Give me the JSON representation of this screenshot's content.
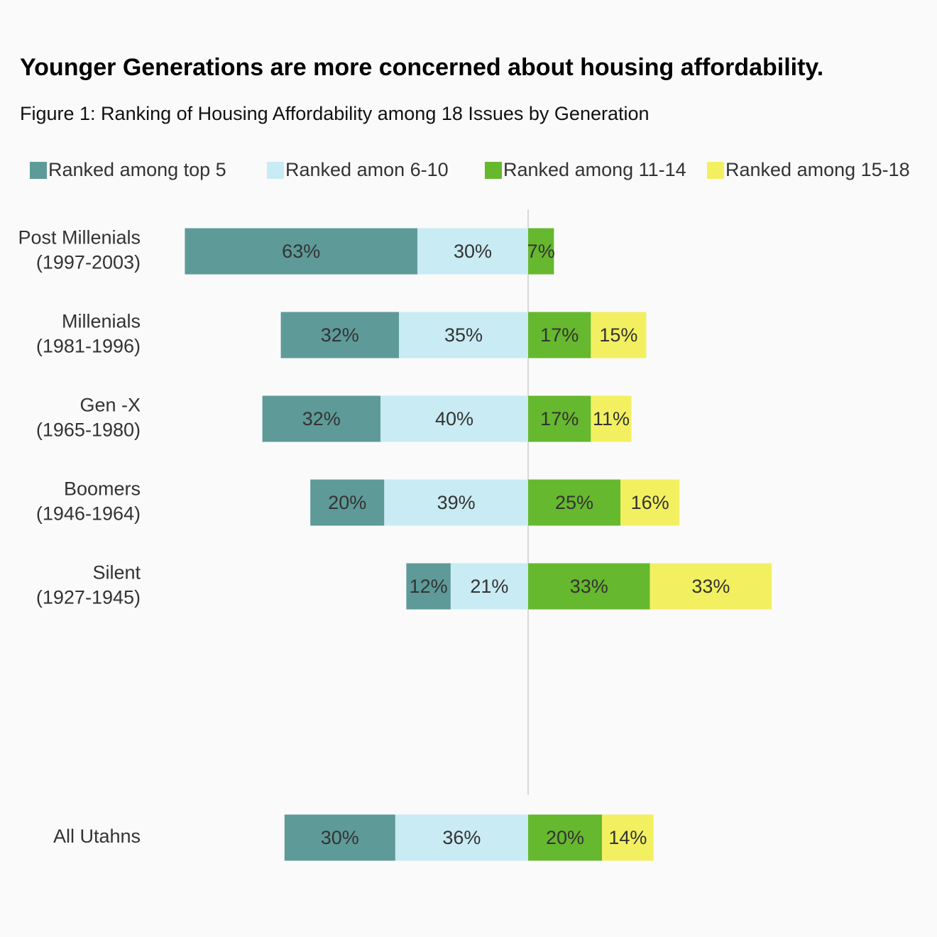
{
  "chart_data": {
    "type": "diverging-bar",
    "title": "Younger Generations are more concerned about housing affordability.",
    "subtitle": "Figure 1: Ranking of Housing Affordability among 18 Issues by Generation",
    "categories": [
      [
        "Post Millenials",
        "(1997-2003)"
      ],
      [
        "Millenials",
        "(1981-1996)"
      ],
      [
        "Gen -X",
        "(1965-1980)"
      ],
      [
        "Boomers",
        "(1946-1964)"
      ],
      [
        "Silent",
        "(1927-1945)"
      ],
      null,
      null,
      [
        "All Utahns"
      ]
    ],
    "xlim": [
      -100,
      100
    ],
    "series": [
      {
        "name": "Ranked among top 5",
        "color": "#5e9a98",
        "direction": "left",
        "values": [
          63,
          32,
          32,
          20,
          12,
          null,
          null,
          30
        ],
        "value_labels": [
          "63%",
          "32%",
          "32%",
          "20%",
          "12%",
          null,
          null,
          "30%"
        ]
      },
      {
        "name": "Ranked amon 6-10",
        "color": "#c9ebf3",
        "direction": "left",
        "values": [
          30,
          35,
          40,
          39,
          21,
          null,
          null,
          36
        ],
        "value_labels": [
          "30%",
          "35%",
          "40%",
          "39%",
          "21%",
          null,
          null,
          "36%"
        ]
      },
      {
        "name": "Ranked among 11-14",
        "color": "#66b82e",
        "direction": "right",
        "values": [
          7,
          17,
          17,
          25,
          33,
          null,
          null,
          20
        ],
        "value_labels": [
          "7%",
          "17%",
          "17%",
          "25%",
          "33%",
          null,
          null,
          "20%"
        ]
      },
      {
        "name": "Ranked among 15-18",
        "color": "#f2f060",
        "direction": "right",
        "values": [
          null,
          15,
          11,
          16,
          33,
          null,
          null,
          14
        ],
        "value_labels": [
          null,
          "15%",
          "11%",
          "16%",
          "33%",
          null,
          null,
          "14%"
        ]
      }
    ]
  }
}
